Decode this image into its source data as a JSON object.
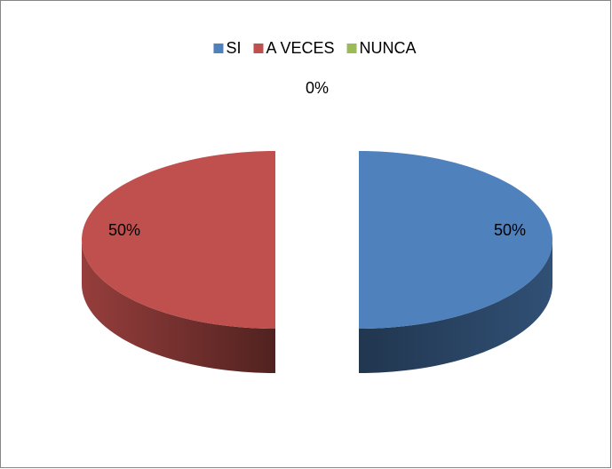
{
  "chart_data": {
    "type": "pie",
    "three_d": true,
    "exploded": true,
    "categories": [
      "SI",
      "A VECES",
      "NUNCA"
    ],
    "values": [
      50,
      50,
      0
    ],
    "value_labels": [
      "50%",
      "50%",
      "0%"
    ],
    "colors": [
      "#4f81bd",
      "#c0504d",
      "#9bbb59"
    ],
    "legend": "top"
  }
}
